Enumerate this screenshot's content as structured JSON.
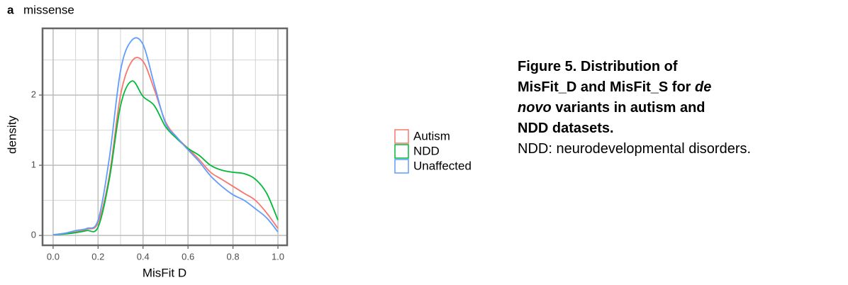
{
  "panel_label": "a",
  "chart_data": {
    "type": "line",
    "title": "missense",
    "x_label": "MisFit D",
    "y_label": "density",
    "x": [
      0,
      0.05,
      0.1,
      0.15,
      0.2,
      0.25,
      0.3,
      0.35,
      0.4,
      0.45,
      0.5,
      0.55,
      0.6,
      0.65,
      0.7,
      0.75,
      0.8,
      0.85,
      0.9,
      0.95,
      1.0
    ],
    "series": [
      {
        "name": "Autism",
        "color": "#F8766D",
        "values": [
          0.01,
          0.03,
          0.05,
          0.09,
          0.18,
          0.85,
          2.0,
          2.48,
          2.48,
          2.08,
          1.62,
          1.4,
          1.24,
          1.08,
          0.9,
          0.8,
          0.7,
          0.6,
          0.5,
          0.32,
          0.1
        ]
      },
      {
        "name": "NDD",
        "color": "#00BA38",
        "values": [
          0.01,
          0.02,
          0.04,
          0.07,
          0.12,
          0.8,
          1.85,
          2.2,
          1.98,
          1.85,
          1.55,
          1.38,
          1.24,
          1.14,
          1.0,
          0.93,
          0.9,
          0.88,
          0.8,
          0.6,
          0.22
        ]
      },
      {
        "name": "Unaffected",
        "color": "#619CFF",
        "values": [
          0.01,
          0.03,
          0.07,
          0.1,
          0.22,
          1.1,
          2.35,
          2.78,
          2.72,
          2.15,
          1.6,
          1.4,
          1.22,
          1.05,
          0.85,
          0.7,
          0.58,
          0.5,
          0.38,
          0.25,
          0.05
        ]
      }
    ],
    "xlim": [
      -0.047,
      1.041
    ],
    "ylim": [
      -0.14,
      2.95
    ],
    "xticks": [
      {
        "value": 0,
        "label": "0.0"
      },
      0.2,
      0.4,
      0.6,
      0.8,
      {
        "value": 1,
        "label": "1.0"
      }
    ],
    "yticks": [
      0,
      1,
      2
    ],
    "x_minor_ticks": [
      0.1,
      0.3,
      0.5,
      0.7,
      0.9
    ],
    "y_minor_ticks": [
      0.5,
      1.5,
      2.5
    ],
    "grid": true,
    "legend": "right"
  },
  "caption": {
    "title_parts": [
      "Figure 5. Distribution of MisFit_D and MisFit_S for ",
      "de novo",
      " variants in autism and NDD datasets."
    ],
    "text": "NDD: neurodevelopmental disorders."
  }
}
